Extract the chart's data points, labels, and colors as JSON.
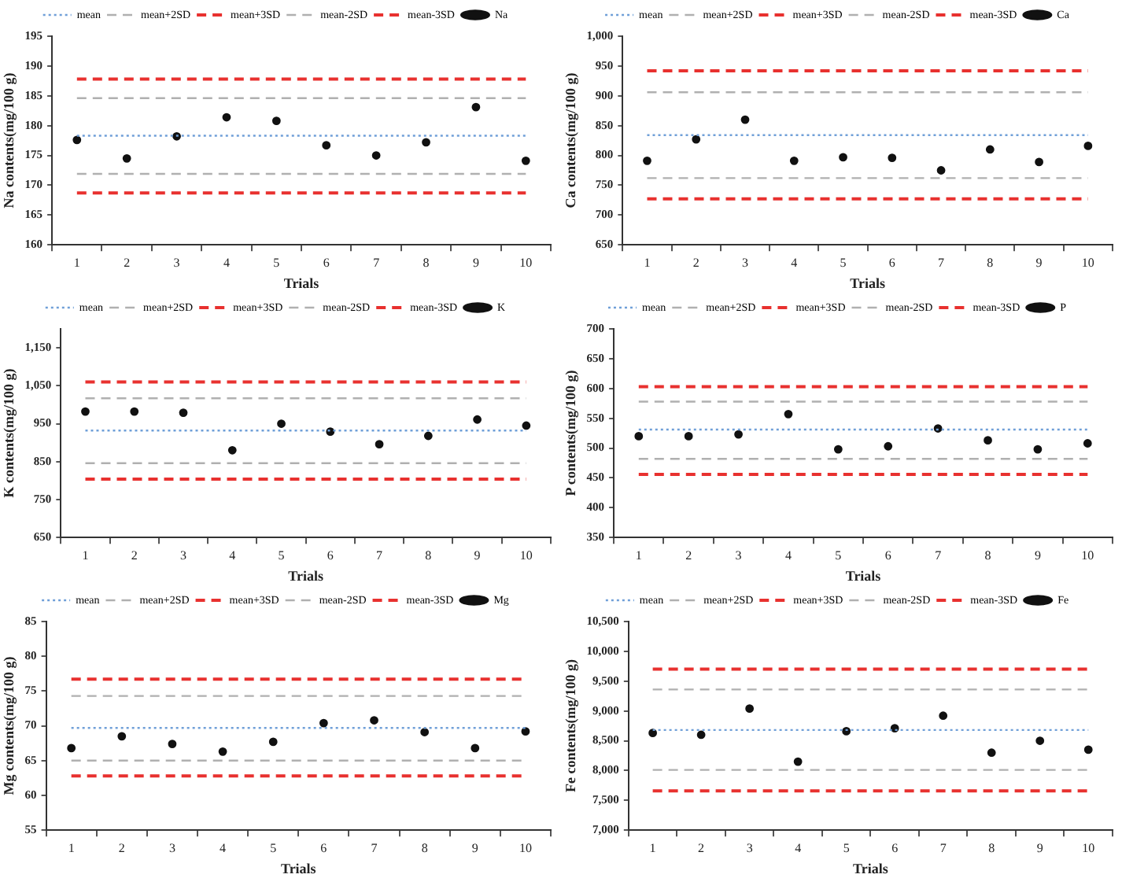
{
  "chart_data": [
    {
      "type": "scatter",
      "xlabel": "Trials",
      "ylabel": "Na contents(mg/100 g)",
      "categories": [
        "1",
        "2",
        "3",
        "4",
        "5",
        "6",
        "7",
        "8",
        "9",
        "10"
      ],
      "series": [
        {
          "name": "Na",
          "color": "#111111",
          "values": [
            177.6,
            174.5,
            178.2,
            181.4,
            180.8,
            176.7,
            175.0,
            177.2,
            183.1,
            174.1
          ]
        }
      ],
      "ref_lines": [
        {
          "axis": "y",
          "value": 178.3,
          "label": "mean",
          "color": "#6f9fd8",
          "line_style": "dotted"
        },
        {
          "axis": "y",
          "value": 184.6,
          "label": "mean+2SD",
          "color": "#b0b0b0",
          "line_style": "dashed"
        },
        {
          "axis": "y",
          "value": 187.8,
          "label": "mean+3SD",
          "color": "#e8312f",
          "line_style": "dashed"
        },
        {
          "axis": "y",
          "value": 171.9,
          "label": "mean-2SD",
          "color": "#b0b0b0",
          "line_style": "dashed"
        },
        {
          "axis": "y",
          "value": 168.7,
          "label": "mean-3SD",
          "color": "#e8312f",
          "line_style": "dashed"
        }
      ],
      "ylim": [
        160,
        195
      ],
      "yticks": [
        160,
        165,
        170,
        175,
        180,
        185,
        190,
        195
      ],
      "marker": "circle",
      "legend": "top",
      "grid": false
    },
    {
      "type": "scatter",
      "xlabel": "Trials",
      "ylabel": "Ca contents(mg/100 g)",
      "categories": [
        "1",
        "2",
        "3",
        "4",
        "5",
        "6",
        "7",
        "8",
        "9",
        "10"
      ],
      "series": [
        {
          "name": "Ca",
          "color": "#111111",
          "values": [
            791,
            827,
            860,
            791,
            797,
            796,
            775,
            810,
            789,
            816
          ]
        }
      ],
      "ref_lines": [
        {
          "axis": "y",
          "value": 834,
          "label": "mean",
          "color": "#6f9fd8",
          "line_style": "dotted"
        },
        {
          "axis": "y",
          "value": 906,
          "label": "mean+2SD",
          "color": "#b0b0b0",
          "line_style": "dashed"
        },
        {
          "axis": "y",
          "value": 942,
          "label": "mean+3SD",
          "color": "#e8312f",
          "line_style": "dashed"
        },
        {
          "axis": "y",
          "value": 762,
          "label": "mean-2SD",
          "color": "#b0b0b0",
          "line_style": "dashed"
        },
        {
          "axis": "y",
          "value": 727,
          "label": "mean-3SD",
          "color": "#e8312f",
          "line_style": "dashed"
        }
      ],
      "ylim": [
        650,
        1000
      ],
      "yticks": [
        650,
        700,
        750,
        800,
        850,
        900,
        950,
        {
          "value": 1000,
          "label": "1,000"
        }
      ],
      "marker": "circle",
      "legend": "top",
      "grid": false
    },
    {
      "type": "scatter",
      "xlabel": "Trials",
      "ylabel": "K contents(mg/100 g)",
      "categories": [
        "1",
        "2",
        "3",
        "4",
        "5",
        "6",
        "7",
        "8",
        "9",
        "10"
      ],
      "series": [
        {
          "name": "K",
          "color": "#111111",
          "values": [
            982,
            982,
            979,
            880,
            950,
            929,
            896,
            918,
            961,
            945
          ]
        }
      ],
      "ref_lines": [
        {
          "axis": "y",
          "value": 932,
          "label": "mean",
          "color": "#6f9fd8",
          "line_style": "dotted"
        },
        {
          "axis": "y",
          "value": 1017,
          "label": "mean+2SD",
          "color": "#b0b0b0",
          "line_style": "dashed"
        },
        {
          "axis": "y",
          "value": 1060,
          "label": "mean+3SD",
          "color": "#e8312f",
          "line_style": "dashed"
        },
        {
          "axis": "y",
          "value": 846,
          "label": "mean-2SD",
          "color": "#b0b0b0",
          "line_style": "dashed"
        },
        {
          "axis": "y",
          "value": 804,
          "label": "mean-3SD",
          "color": "#e8312f",
          "line_style": "dashed"
        }
      ],
      "ylim": [
        650,
        1200
      ],
      "yticks": [
        650,
        750,
        850,
        950,
        {
          "value": 1050,
          "label": "1,050"
        },
        {
          "value": 1150,
          "label": "1,150"
        }
      ],
      "marker": "circle",
      "legend": "top",
      "grid": false
    },
    {
      "type": "scatter",
      "xlabel": "Trials",
      "ylabel": "P contents(mg/100 g)",
      "categories": [
        "1",
        "2",
        "3",
        "4",
        "5",
        "6",
        "7",
        "8",
        "9",
        "10"
      ],
      "series": [
        {
          "name": "P",
          "color": "#111111",
          "values": [
            520,
            520,
            523,
            557,
            498,
            503,
            533,
            513,
            498,
            508
          ]
        }
      ],
      "ref_lines": [
        {
          "axis": "y",
          "value": 531,
          "label": "mean",
          "color": "#6f9fd8",
          "line_style": "dotted"
        },
        {
          "axis": "y",
          "value": 578,
          "label": "mean+2SD",
          "color": "#b0b0b0",
          "line_style": "dashed"
        },
        {
          "axis": "y",
          "value": 603,
          "label": "mean+3SD",
          "color": "#e8312f",
          "line_style": "dashed"
        },
        {
          "axis": "y",
          "value": 482,
          "label": "mean-2SD",
          "color": "#b0b0b0",
          "line_style": "dashed"
        },
        {
          "axis": "y",
          "value": 456,
          "label": "mean-3SD",
          "color": "#e8312f",
          "line_style": "dashed"
        }
      ],
      "ylim": [
        350,
        700
      ],
      "yticks": [
        350,
        400,
        450,
        500,
        550,
        600,
        650,
        700
      ],
      "marker": "circle",
      "legend": "top",
      "grid": false
    },
    {
      "type": "scatter",
      "xlabel": "Trials",
      "ylabel": "Mg contents(mg/100 g)",
      "categories": [
        "1",
        "2",
        "3",
        "4",
        "5",
        "6",
        "7",
        "8",
        "9",
        "10"
      ],
      "series": [
        {
          "name": "Mg",
          "color": "#111111",
          "values": [
            66.8,
            68.5,
            67.4,
            66.3,
            67.7,
            70.4,
            70.8,
            69.1,
            66.8,
            69.2
          ]
        }
      ],
      "ref_lines": [
        {
          "axis": "y",
          "value": 69.7,
          "label": "mean",
          "color": "#6f9fd8",
          "line_style": "dotted"
        },
        {
          "axis": "y",
          "value": 74.3,
          "label": "mean+2SD",
          "color": "#b0b0b0",
          "line_style": "dashed"
        },
        {
          "axis": "y",
          "value": 76.7,
          "label": "mean+3SD",
          "color": "#e8312f",
          "line_style": "dashed"
        },
        {
          "axis": "y",
          "value": 65.0,
          "label": "mean-2SD",
          "color": "#b0b0b0",
          "line_style": "dashed"
        },
        {
          "axis": "y",
          "value": 62.8,
          "label": "mean-3SD",
          "color": "#e8312f",
          "line_style": "dashed"
        }
      ],
      "ylim": [
        55,
        85
      ],
      "yticks": [
        55,
        60,
        65,
        70,
        75,
        80,
        85
      ],
      "marker": "circle",
      "legend": "top",
      "grid": false
    },
    {
      "type": "scatter",
      "xlabel": "Trials",
      "ylabel": "Fe contents(mg/100 g)",
      "categories": [
        "1",
        "2",
        "3",
        "4",
        "5",
        "6",
        "7",
        "8",
        "9",
        "10"
      ],
      "series": [
        {
          "name": "Fe",
          "color": "#111111",
          "values": [
            8630,
            8600,
            9040,
            8150,
            8660,
            8710,
            8920,
            8300,
            8500,
            8350
          ]
        }
      ],
      "ref_lines": [
        {
          "axis": "y",
          "value": 8680,
          "label": "mean",
          "color": "#6f9fd8",
          "line_style": "dotted"
        },
        {
          "axis": "y",
          "value": 9360,
          "label": "mean+2SD",
          "color": "#b0b0b0",
          "line_style": "dashed"
        },
        {
          "axis": "y",
          "value": 9700,
          "label": "mean+3SD",
          "color": "#e8312f",
          "line_style": "dashed"
        },
        {
          "axis": "y",
          "value": 8010,
          "label": "mean-2SD",
          "color": "#b0b0b0",
          "line_style": "dashed"
        },
        {
          "axis": "y",
          "value": 7660,
          "label": "mean-3SD",
          "color": "#e8312f",
          "line_style": "dashed"
        }
      ],
      "ylim": [
        7000,
        10500
      ],
      "yticks": [
        {
          "value": 7000,
          "label": "7,000"
        },
        {
          "value": 7500,
          "label": "7,500"
        },
        {
          "value": 8000,
          "label": "8,000"
        },
        {
          "value": 8500,
          "label": "8,500"
        },
        {
          "value": 9000,
          "label": "9,000"
        },
        {
          "value": 9500,
          "label": "9,500"
        },
        {
          "value": 10000,
          "label": "10,000"
        },
        {
          "value": 10500,
          "label": "10,500"
        }
      ],
      "marker": "circle",
      "legend": "top",
      "grid": false
    }
  ]
}
